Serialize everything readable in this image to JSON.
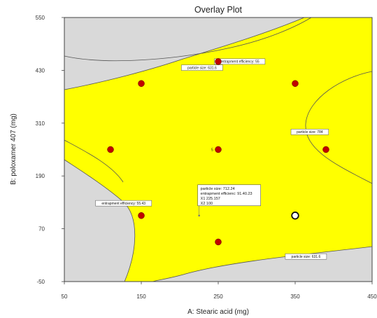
{
  "chart_data": {
    "type": "scatter",
    "title": "Overlay Plot",
    "xlabel": "A: Stearic acid (mg)",
    "ylabel": "B: poloxamer 407 (mg)",
    "xlim": [
      50,
      450
    ],
    "ylim": [
      -50,
      550
    ],
    "xticks": [
      "50",
      "150",
      "250",
      "350",
      "450"
    ],
    "yticks": [
      "-50",
      "70",
      "190",
      "310",
      "430",
      "550"
    ],
    "colors": {
      "feasible_region": "#ffff00",
      "infeasible_region": "#d9d9d9",
      "design_point": "#c00000",
      "selected_point": "#ffffff"
    },
    "design_points": [
      {
        "x": 250,
        "y": 450
      },
      {
        "x": 150,
        "y": 400
      },
      {
        "x": 350,
        "y": 400
      },
      {
        "x": 110,
        "y": 250
      },
      {
        "x": 250,
        "y": 250
      },
      {
        "x": 390,
        "y": 250
      },
      {
        "x": 150,
        "y": 100
      },
      {
        "x": 250,
        "y": 40
      }
    ],
    "selected_point": {
      "x": 350,
      "y": 100
    },
    "center_label": {
      "x": 248,
      "y": 250,
      "text": "5"
    },
    "contour_flags": [
      {
        "text": "entrapment efficiency: 55",
        "x": 278,
        "y": 450
      },
      {
        "text": "particle size: 631.6",
        "x": 229,
        "y": 436
      },
      {
        "text": "particle size: 784",
        "x": 369,
        "y": 290
      },
      {
        "text": "entrapment efficiency: 55.43",
        "x": 127,
        "y": 128
      },
      {
        "text": "particle size: 631.6",
        "x": 364,
        "y": 7
      }
    ],
    "prediction_popup": {
      "x": 225.157,
      "y": 100,
      "lines": [
        "particle size:    712.24",
        "entrapment efficienc: 91.40.23",
        "X1  225.157",
        "X2  100"
      ]
    }
  }
}
